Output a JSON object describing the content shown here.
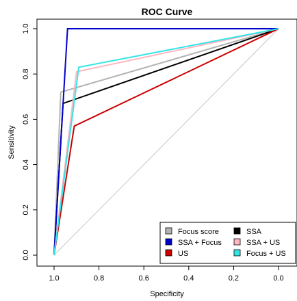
{
  "chart_data": {
    "type": "line",
    "title": "ROC Curve",
    "xlabel": "Specificity",
    "ylabel": "Sensitivity",
    "xlim": [
      1.0,
      0.0
    ],
    "ylim": [
      0.0,
      1.0
    ],
    "x_reversed": true,
    "grid": false,
    "x_ticks": [
      1.0,
      0.8,
      0.6,
      0.4,
      0.2,
      0.0
    ],
    "x_tick_labels": [
      "1.0",
      "0.8",
      "0.6",
      "0.4",
      "0.2",
      "0.0"
    ],
    "y_ticks": [
      0.0,
      0.2,
      0.4,
      0.6,
      0.8,
      1.0
    ],
    "y_tick_labels": [
      "0.0",
      "0.2",
      "0.4",
      "0.6",
      "0.8",
      "1.0"
    ],
    "reference_line": {
      "from": [
        1.0,
        0.0
      ],
      "to": [
        0.0,
        1.0
      ],
      "color": "#c8c8c8"
    },
    "legend_position": "bottom-right",
    "series": [
      {
        "name": "Focus score",
        "color": "#b3b3b3",
        "x": [
          1.0,
          0.97,
          0.0
        ],
        "y": [
          0.0,
          0.72,
          1.0
        ]
      },
      {
        "name": "SSA",
        "color": "#000000",
        "x": [
          1.0,
          0.96,
          0.0
        ],
        "y": [
          0.0,
          0.67,
          1.0
        ]
      },
      {
        "name": "SSA + Focus",
        "color": "#0000cc",
        "x": [
          1.0,
          0.94,
          0.0
        ],
        "y": [
          0.0,
          1.0,
          1.0
        ]
      },
      {
        "name": "SSA + US",
        "color": "#ffb6c1",
        "x": [
          1.0,
          0.9,
          0.0
        ],
        "y": [
          0.0,
          0.81,
          1.0
        ]
      },
      {
        "name": "US",
        "color": "#cc0000",
        "x": [
          1.0,
          0.91,
          0.0
        ],
        "y": [
          0.0,
          0.57,
          1.0
        ]
      },
      {
        "name": "Focus + US",
        "color": "#33e6e6",
        "x": [
          1.0,
          0.89,
          0.0
        ],
        "y": [
          0.0,
          0.83,
          1.0
        ]
      }
    ]
  }
}
